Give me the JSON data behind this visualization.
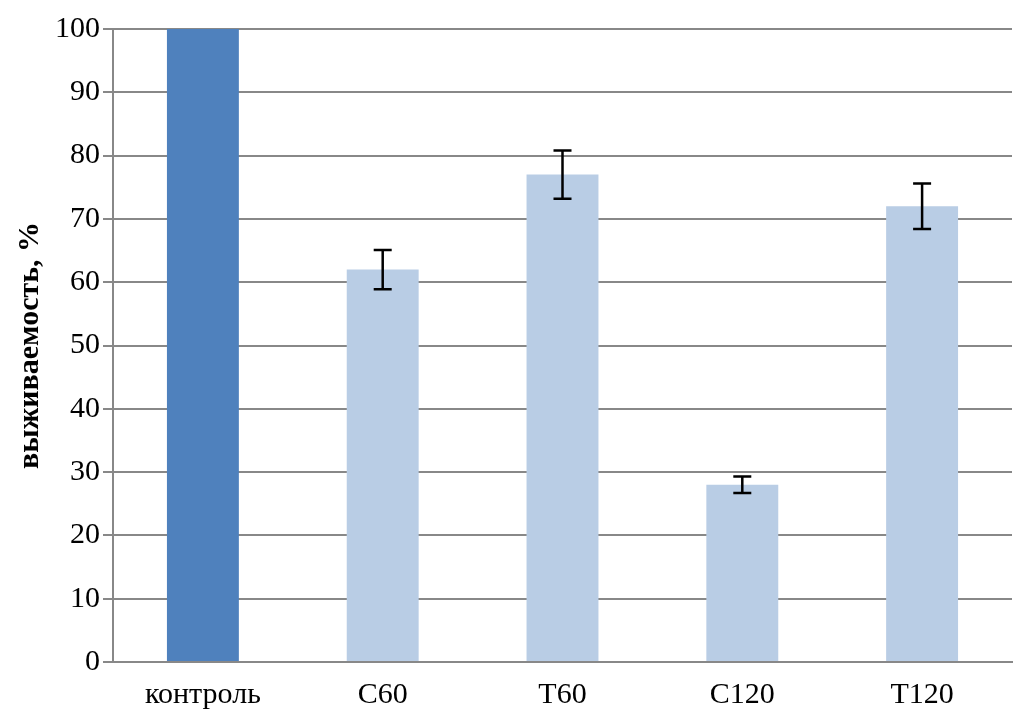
{
  "chart_data": {
    "type": "bar",
    "ylabel": "выживаемость, %",
    "categories": [
      "контроль",
      "C60",
      "T60",
      "C120",
      "T120"
    ],
    "values": [
      100,
      62,
      77,
      28,
      72
    ],
    "colors": [
      "#4f81bd",
      "#b9cde5",
      "#b9cde5",
      "#b9cde5",
      "#b9cde5"
    ],
    "errors": [
      null,
      3.1,
      3.8,
      1.3,
      3.6
    ],
    "ylim": [
      0,
      100
    ],
    "yticks": [
      0,
      10,
      20,
      30,
      40,
      50,
      60,
      70,
      80,
      90,
      100
    ],
    "grid": "y",
    "legend": false
  }
}
